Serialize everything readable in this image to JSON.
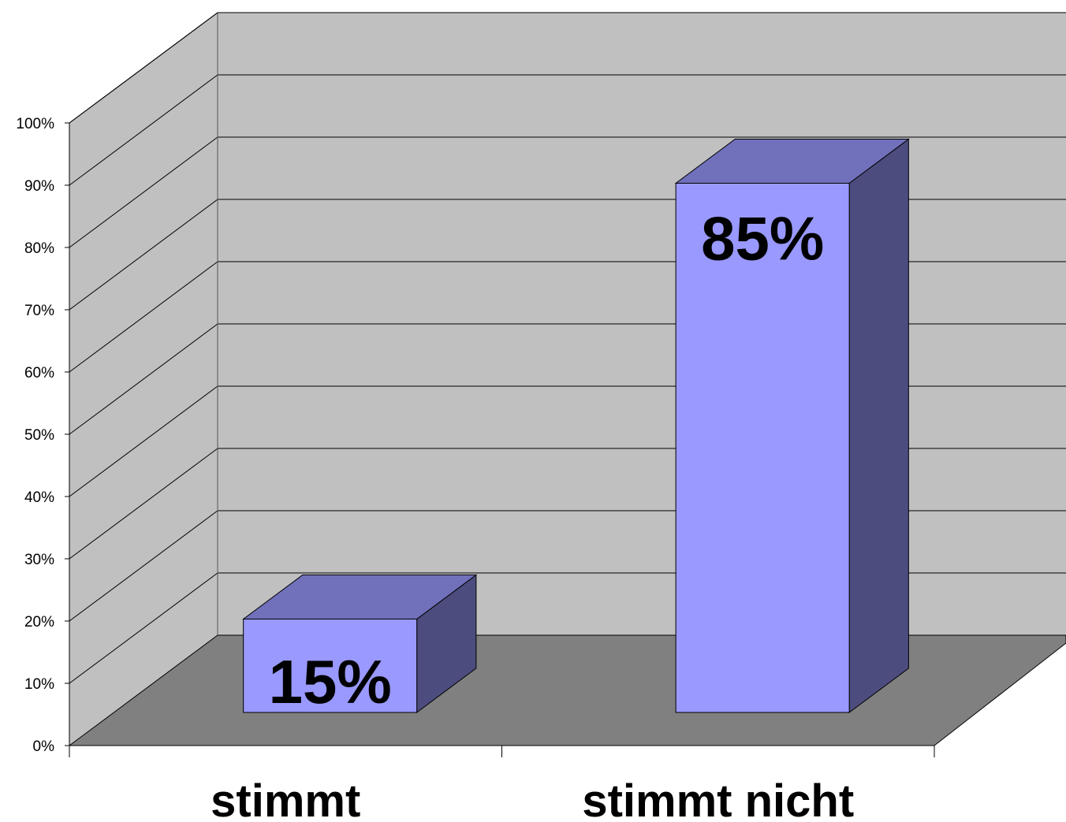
{
  "chart_data": {
    "type": "bar",
    "categories": [
      "stimmt",
      "stimmt nicht"
    ],
    "values": [
      15,
      85
    ],
    "data_labels": [
      "15%",
      "85%"
    ],
    "title": "",
    "xlabel": "",
    "ylabel": "",
    "ylim": [
      0,
      100
    ],
    "y_ticks": [
      "0%",
      "10%",
      "20%",
      "30%",
      "40%",
      "50%",
      "60%",
      "70%",
      "80%",
      "90%",
      "100%"
    ],
    "grid": true,
    "legend": "none",
    "style": "3d"
  },
  "colors": {
    "back_wall": "#c0c0c0",
    "floor": "#808080",
    "bar_front": "#9999ff",
    "bar_top": "#7070bb",
    "bar_side": "#4c4c7e",
    "gridline": "#000000"
  }
}
